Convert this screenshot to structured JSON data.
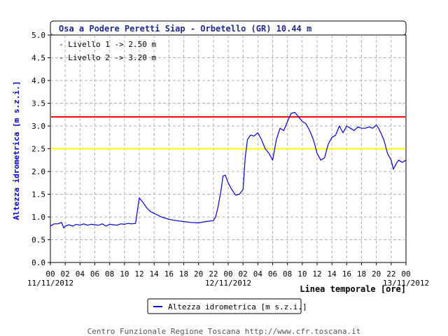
{
  "chart_data": {
    "type": "line",
    "title": "Osa a Podere Peretti Siap - Orbetello (GR) 10.44 m",
    "ylabel": "Altezza idrometrica [m s.z.i.]",
    "xlabel": "Linea temporale [ore]",
    "ylim": [
      0,
      5
    ],
    "yticks": [
      "0.0",
      "0.5",
      "1.0",
      "1.5",
      "2.0",
      "2.5",
      "3.0",
      "3.5",
      "4.0",
      "4.5",
      "5.0"
    ],
    "xticks": [
      "00",
      "02",
      "04",
      "06",
      "08",
      "10",
      "12",
      "14",
      "16",
      "18",
      "20",
      "22",
      "00",
      "02",
      "04",
      "06",
      "08",
      "10",
      "12",
      "14",
      "16",
      "18",
      "20",
      "22",
      "00"
    ],
    "date_labels": [
      "11/11/2012",
      "12/11/2012",
      "13/11/2012"
    ],
    "x_range_hours": [
      0,
      48
    ],
    "grid": true,
    "legend_position": "bottom-center",
    "thresholds": [
      {
        "label": "- Livello 1 -> 2.50 m",
        "value": 2.5,
        "color": "#ffff00"
      },
      {
        "label": "- Livello 2 -> 3.20 m",
        "value": 3.2,
        "color": "#ff0000"
      }
    ],
    "series": [
      {
        "name": "Altezza idrometrica [m s.z.i.]",
        "color": "#0000cc",
        "x": [
          0,
          0.5,
          1,
          1.5,
          1.8,
          2,
          2.5,
          3,
          3.5,
          4,
          4.5,
          5,
          5.5,
          6,
          6.5,
          7,
          7.5,
          8,
          8.5,
          9,
          9.5,
          10,
          10.5,
          11,
          11.5,
          11.8,
          12,
          12.5,
          13,
          13.5,
          14,
          15,
          16,
          17,
          18,
          19,
          20,
          21,
          22,
          22.3,
          22.6,
          23,
          23.3,
          23.6,
          24,
          24.5,
          25,
          25.5,
          26,
          26.3,
          26.6,
          27,
          27.5,
          28,
          28.5,
          29,
          29.5,
          30,
          30.5,
          31,
          31.5,
          32,
          32.5,
          33,
          33.5,
          34,
          34.5,
          35,
          35.5,
          36,
          36.5,
          37,
          37.5,
          38,
          38.5,
          39,
          39.5,
          40,
          40.5,
          41,
          41.5,
          42,
          42.5,
          43,
          43.5,
          44,
          44.3,
          44.6,
          45,
          45.5,
          46,
          46.3,
          46.6,
          47,
          47.5,
          48
        ],
        "values": [
          0.8,
          0.85,
          0.85,
          0.88,
          0.76,
          0.8,
          0.83,
          0.8,
          0.84,
          0.82,
          0.85,
          0.82,
          0.84,
          0.83,
          0.82,
          0.85,
          0.8,
          0.84,
          0.83,
          0.82,
          0.85,
          0.84,
          0.86,
          0.85,
          0.86,
          1.2,
          1.42,
          1.32,
          1.2,
          1.12,
          1.08,
          1.0,
          0.95,
          0.92,
          0.9,
          0.88,
          0.87,
          0.9,
          0.92,
          1.0,
          1.2,
          1.55,
          1.9,
          1.92,
          1.75,
          1.6,
          1.48,
          1.5,
          1.6,
          2.3,
          2.7,
          2.8,
          2.78,
          2.85,
          2.7,
          2.5,
          2.4,
          2.25,
          2.7,
          2.95,
          2.9,
          3.1,
          3.28,
          3.3,
          3.2,
          3.1,
          3.05,
          2.9,
          2.7,
          2.4,
          2.25,
          2.3,
          2.6,
          2.75,
          2.8,
          3.0,
          2.85,
          3.0,
          2.95,
          2.9,
          2.98,
          2.95,
          2.95,
          2.98,
          2.95,
          3.02,
          2.95,
          2.85,
          2.7,
          2.4,
          2.25,
          2.05,
          2.15,
          2.25,
          2.2,
          2.25
        ]
      }
    ]
  },
  "footer": {
    "credit": "Centro Funzionale Regione Toscana http://www.cfr.toscana.it"
  }
}
